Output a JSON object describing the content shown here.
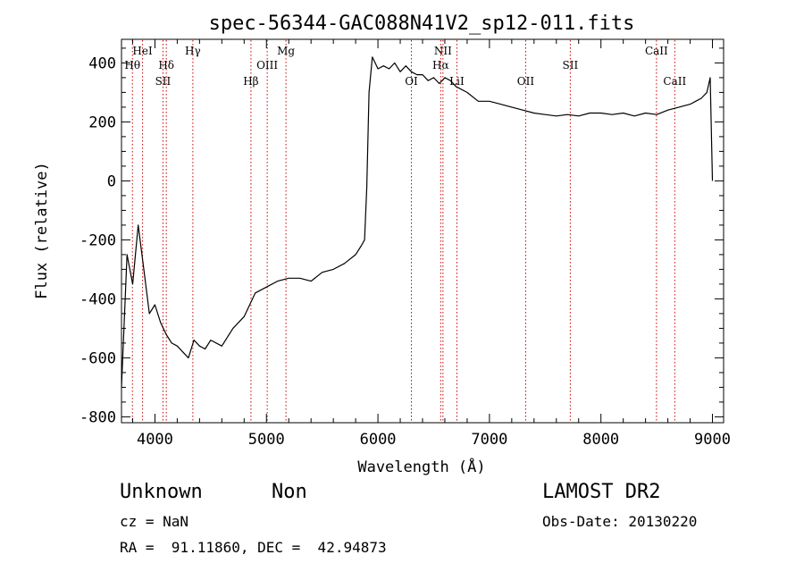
{
  "chart_data": {
    "type": "line",
    "title": "spec-56344-GAC088N41V2_sp12-011.fits",
    "xlabel": "Wavelength (Å)",
    "ylabel": "Flux (relative)",
    "xlim": [
      3700,
      9100
    ],
    "ylim": [
      -820,
      480
    ],
    "xticks": [
      4000,
      5000,
      6000,
      7000,
      8000,
      9000
    ],
    "yticks": [
      -800,
      -600,
      -400,
      -200,
      0,
      200,
      400
    ],
    "series": [
      {
        "x": [
          3700,
          3750,
          3800,
          3850,
          3900,
          3950,
          4000,
          4050,
          4100,
          4150,
          4200,
          4250,
          4300,
          4350,
          4400,
          4450,
          4500,
          4600,
          4700,
          4800,
          4900,
          5000,
          5100,
          5200,
          5300,
          5400,
          5500,
          5600,
          5700,
          5800,
          5850,
          5880,
          5900,
          5920,
          5950,
          6000,
          6050,
          6100,
          6150,
          6200,
          6250,
          6300,
          6350,
          6400,
          6450,
          6500,
          6550,
          6600,
          6650,
          6700,
          6800,
          6900,
          7000,
          7100,
          7200,
          7300,
          7400,
          7500,
          7600,
          7700,
          7800,
          7900,
          8000,
          8100,
          8200,
          8300,
          8400,
          8500,
          8600,
          8700,
          8800,
          8850,
          8900,
          8950,
          8980,
          9000
        ],
        "y": [
          -700,
          -250,
          -350,
          -150,
          -300,
          -450,
          -420,
          -480,
          -520,
          -550,
          -560,
          -580,
          -600,
          -540,
          -560,
          -570,
          -540,
          -560,
          -500,
          -460,
          -380,
          -360,
          -340,
          -330,
          -330,
          -340,
          -310,
          -300,
          -280,
          -250,
          -220,
          -200,
          -20,
          300,
          420,
          380,
          390,
          380,
          400,
          370,
          390,
          370,
          360,
          360,
          340,
          350,
          330,
          350,
          340,
          320,
          300,
          270,
          270,
          260,
          250,
          240,
          230,
          225,
          220,
          225,
          220,
          230,
          230,
          225,
          230,
          220,
          230,
          225,
          240,
          250,
          260,
          270,
          280,
          300,
          350,
          0
        ]
      }
    ],
    "annotations": [
      {
        "label": "Hθ",
        "wavelength": 3798,
        "row": 2
      },
      {
        "label": "HeI",
        "wavelength": 3889,
        "row": 1
      },
      {
        "label": "Hδ",
        "wavelength": 4102,
        "row": 2
      },
      {
        "label": "SII",
        "wavelength": 4072,
        "row": 3
      },
      {
        "label": "Hγ",
        "wavelength": 4340,
        "row": 1
      },
      {
        "label": "Hβ",
        "wavelength": 4861,
        "row": 3
      },
      {
        "label": "OIII",
        "wavelength": 5007,
        "row": 2
      },
      {
        "label": "Mg",
        "wavelength": 5175,
        "row": 1
      },
      {
        "label": "OI",
        "wavelength": 6300,
        "row": 3
      },
      {
        "label": "NII",
        "wavelength": 6583,
        "row": 1
      },
      {
        "label": "Hα",
        "wavelength": 6563,
        "row": 2
      },
      {
        "label": "LiI",
        "wavelength": 6708,
        "row": 3
      },
      {
        "label": "OII",
        "wavelength": 7325,
        "row": 3
      },
      {
        "label": "SII",
        "wavelength": 7725,
        "row": 2
      },
      {
        "label": "CaII",
        "wavelength": 8498,
        "row": 1
      },
      {
        "label": "CaII",
        "wavelength": 8662,
        "row": 3
      }
    ],
    "grid": false,
    "legend": "none"
  },
  "info": {
    "class_label": "Unknown",
    "subclass_label": "Non",
    "survey": "LAMOST DR2",
    "cz": "cz = NaN",
    "obs_date": "Obs-Date: 20130220",
    "coords": "RA =  91.11860, DEC =  42.94873"
  },
  "colors": {
    "spectrum": "#000000",
    "line_markers": "#cc0000"
  }
}
